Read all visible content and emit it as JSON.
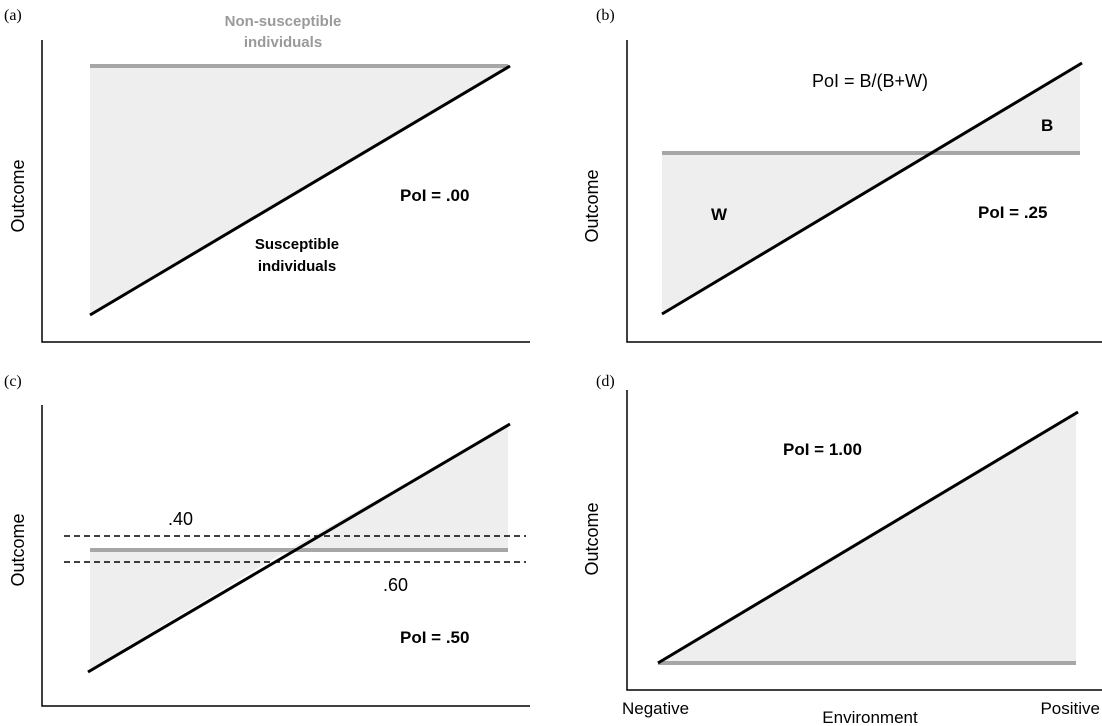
{
  "panel_a": {
    "tag": "(a)",
    "ylabel": "Outcome",
    "nonsusceptible_line1": "Non-susceptible",
    "nonsusceptible_line2": "individuals",
    "susceptible_line1": "Susceptible",
    "susceptible_line2": "individuals",
    "pol": "PoI = .00"
  },
  "panel_b": {
    "tag": "(b)",
    "ylabel": "Outcome",
    "formula": "PoI = B/(B+W)",
    "label_b": "B",
    "label_w": "W",
    "pol": "PoI = .25"
  },
  "panel_c": {
    "tag": "(c)",
    "ylabel": "Outcome",
    "upper_value": ".40",
    "lower_value": ".60",
    "pol": "PoI = .50"
  },
  "panel_d": {
    "tag": "(d)",
    "ylabel": "Outcome",
    "pol": "PoI = 1.00",
    "x_left": "Negative",
    "x_center": "Environment",
    "x_right": "Positive"
  },
  "colors": {
    "shade": "#eeeeee",
    "nonsusceptible_line": "#a6a6a6",
    "susceptible_line": "#000000"
  }
}
